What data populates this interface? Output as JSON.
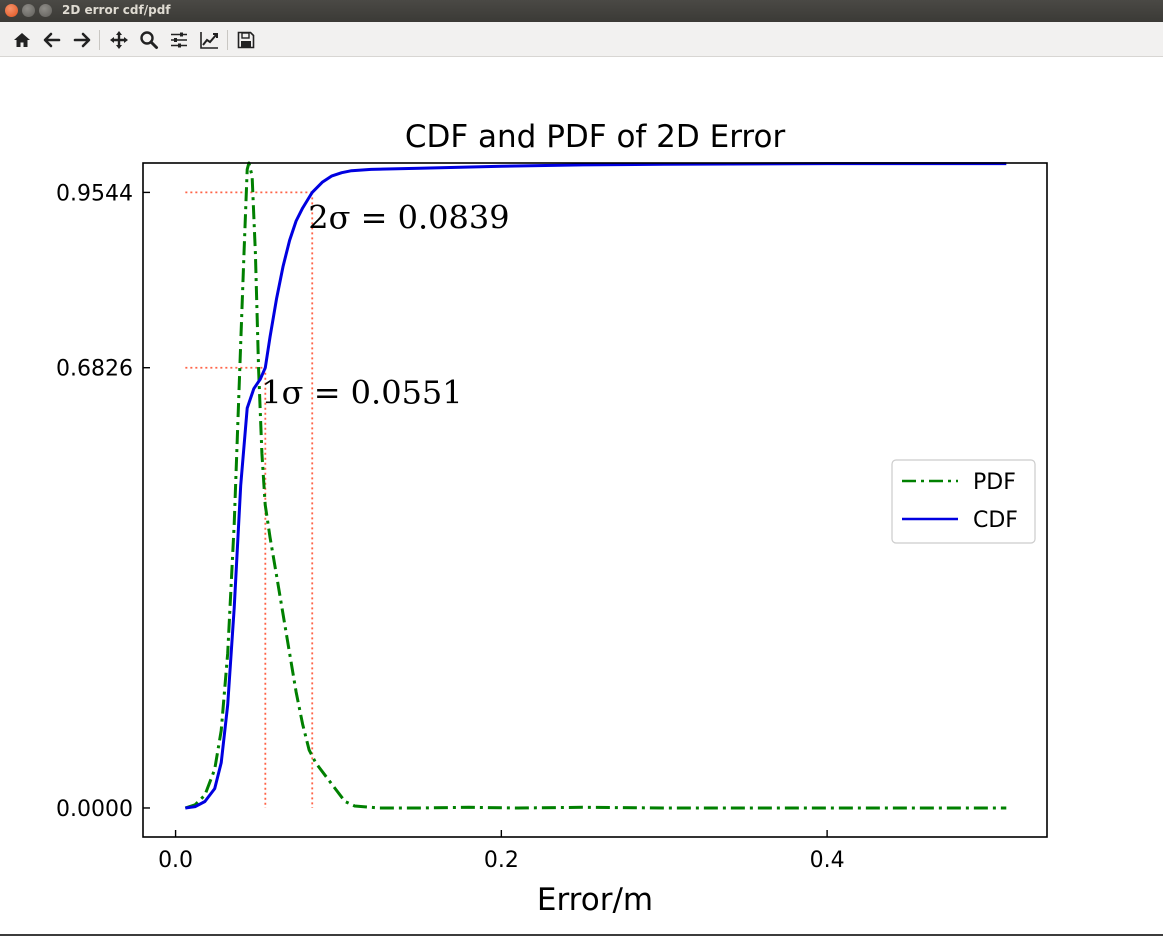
{
  "window": {
    "title": "2D error cdf/pdf"
  },
  "toolbar": {
    "buttons": [
      {
        "name": "home-icon"
      },
      {
        "name": "back-icon"
      },
      {
        "name": "forward-icon"
      },
      {
        "name": "pan-icon"
      },
      {
        "name": "zoom-icon"
      },
      {
        "name": "configure-subplots-icon"
      },
      {
        "name": "edit-axis-icon"
      },
      {
        "name": "save-icon"
      }
    ]
  },
  "chart_data": {
    "type": "line",
    "title": "CDF and PDF of 2D Error",
    "xlabel": "Error/m",
    "ylabel": "",
    "xlim": [
      -0.02,
      0.535
    ],
    "ylim": [
      -0.045,
      1.0
    ],
    "xticks": [
      0.0,
      0.2,
      0.4
    ],
    "xtick_labels": [
      "0.0",
      "0.2",
      "0.4"
    ],
    "yticks": [
      0.0,
      0.6826,
      0.9544
    ],
    "ytick_labels": [
      "0.0000",
      "0.6826",
      "0.9544"
    ],
    "grid": false,
    "legend_position": "right",
    "series": [
      {
        "name": "PDF",
        "color": "#008000",
        "style": "dashdot",
        "x": [
          0.006,
          0.012,
          0.018,
          0.024,
          0.028,
          0.032,
          0.036,
          0.04,
          0.042,
          0.044,
          0.045,
          0.047,
          0.049,
          0.051,
          0.053,
          0.055,
          0.058,
          0.062,
          0.066,
          0.07,
          0.074,
          0.078,
          0.082,
          0.086,
          0.092,
          0.098,
          0.104,
          0.11,
          0.125,
          0.15,
          0.18,
          0.21,
          0.25,
          0.3,
          0.35,
          0.4,
          0.45,
          0.51
        ],
        "y": [
          0.0,
          0.005,
          0.02,
          0.06,
          0.12,
          0.24,
          0.44,
          0.72,
          0.86,
          0.99,
          1.0,
          0.98,
          0.86,
          0.68,
          0.55,
          0.47,
          0.42,
          0.36,
          0.3,
          0.24,
          0.18,
          0.13,
          0.09,
          0.07,
          0.05,
          0.03,
          0.01,
          0.003,
          0.0,
          0.0,
          0.001,
          0.0,
          0.001,
          0.0,
          0.0,
          0.0,
          0.0,
          0.0
        ]
      },
      {
        "name": "CDF",
        "color": "#0000e0",
        "style": "solid",
        "x": [
          0.006,
          0.012,
          0.018,
          0.024,
          0.028,
          0.032,
          0.036,
          0.04,
          0.044,
          0.048,
          0.052,
          0.0551,
          0.058,
          0.062,
          0.066,
          0.07,
          0.074,
          0.078,
          0.0839,
          0.09,
          0.096,
          0.102,
          0.108,
          0.12,
          0.15,
          0.2,
          0.25,
          0.3,
          0.4,
          0.51
        ],
        "y": [
          0.0,
          0.002,
          0.01,
          0.03,
          0.07,
          0.16,
          0.31,
          0.5,
          0.62,
          0.65,
          0.665,
          0.6826,
          0.73,
          0.79,
          0.84,
          0.88,
          0.91,
          0.93,
          0.9544,
          0.97,
          0.98,
          0.985,
          0.988,
          0.99,
          0.992,
          0.995,
          0.997,
          0.998,
          0.999,
          0.999
        ]
      }
    ],
    "annotations": [
      {
        "label": "1σ = 0.0551",
        "x": 0.0551,
        "y": 0.6826,
        "color": "#ff6347"
      },
      {
        "label": "2σ = 0.0839",
        "x": 0.0839,
        "y": 0.9544,
        "color": "#ff6347"
      }
    ]
  }
}
